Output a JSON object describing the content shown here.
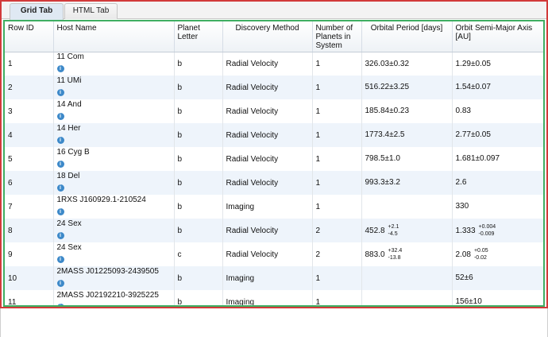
{
  "tabs": [
    {
      "label": "Grid Tab",
      "active": true
    },
    {
      "label": "HTML Tab",
      "active": false
    }
  ],
  "columns": [
    "Row ID",
    "Host Name",
    "Planet Letter",
    "Discovery Method",
    "Number of Planets in System",
    "Orbital Period [days]",
    "Orbit Semi-Major Axis [AU]"
  ],
  "rows": [
    {
      "id": "1",
      "host": "11 Com",
      "letter": "b",
      "method": "Radial Velocity",
      "n": "1",
      "period": "326.03±0.32",
      "period_err": null,
      "axis": "1.29±0.05",
      "axis_err": null
    },
    {
      "id": "2",
      "host": "11 UMi",
      "letter": "b",
      "method": "Radial Velocity",
      "n": "1",
      "period": "516.22±3.25",
      "period_err": null,
      "axis": "1.54±0.07",
      "axis_err": null
    },
    {
      "id": "3",
      "host": "14 And",
      "letter": "b",
      "method": "Radial Velocity",
      "n": "1",
      "period": "185.84±0.23",
      "period_err": null,
      "axis": "0.83",
      "axis_err": null
    },
    {
      "id": "4",
      "host": "14 Her",
      "letter": "b",
      "method": "Radial Velocity",
      "n": "1",
      "period": "1773.4±2.5",
      "period_err": null,
      "axis": "2.77±0.05",
      "axis_err": null
    },
    {
      "id": "5",
      "host": "16 Cyg B",
      "letter": "b",
      "method": "Radial Velocity",
      "n": "1",
      "period": "798.5±1.0",
      "period_err": null,
      "axis": "1.681±0.097",
      "axis_err": null
    },
    {
      "id": "6",
      "host": "18 Del",
      "letter": "b",
      "method": "Radial Velocity",
      "n": "1",
      "period": "993.3±3.2",
      "period_err": null,
      "axis": "2.6",
      "axis_err": null
    },
    {
      "id": "7",
      "host": "1RXS J160929.1-210524",
      "letter": "b",
      "method": "Imaging",
      "n": "1",
      "period": "",
      "period_err": null,
      "axis": "330",
      "axis_err": null
    },
    {
      "id": "8",
      "host": "24 Sex",
      "letter": "b",
      "method": "Radial Velocity",
      "n": "2",
      "period": "452.8",
      "period_err": {
        "plus": "+2.1",
        "minus": "-4.5"
      },
      "axis": "1.333",
      "axis_err": {
        "plus": "+0.004",
        "minus": "-0.009"
      }
    },
    {
      "id": "9",
      "host": "24 Sex",
      "letter": "c",
      "method": "Radial Velocity",
      "n": "2",
      "period": "883.0",
      "period_err": {
        "plus": "+32.4",
        "minus": "-13.8"
      },
      "axis": "2.08",
      "axis_err": {
        "plus": "+0.05",
        "minus": "-0.02"
      }
    },
    {
      "id": "10",
      "host": "2MASS J01225093-2439505",
      "letter": "b",
      "method": "Imaging",
      "n": "1",
      "period": "",
      "period_err": null,
      "axis": "52±6",
      "axis_err": null
    },
    {
      "id": "11",
      "host": "2MASS J02192210-3925225",
      "letter": "b",
      "method": "Imaging",
      "n": "1",
      "period": "",
      "period_err": null,
      "axis": "156±10",
      "axis_err": null
    }
  ],
  "info_icon": "info-circle-icon",
  "colors": {
    "frame_border": "#d23a3a",
    "grid_border": "#3fae62",
    "alt_row": "#eef4fb",
    "info_icon": "#3d89c9"
  }
}
